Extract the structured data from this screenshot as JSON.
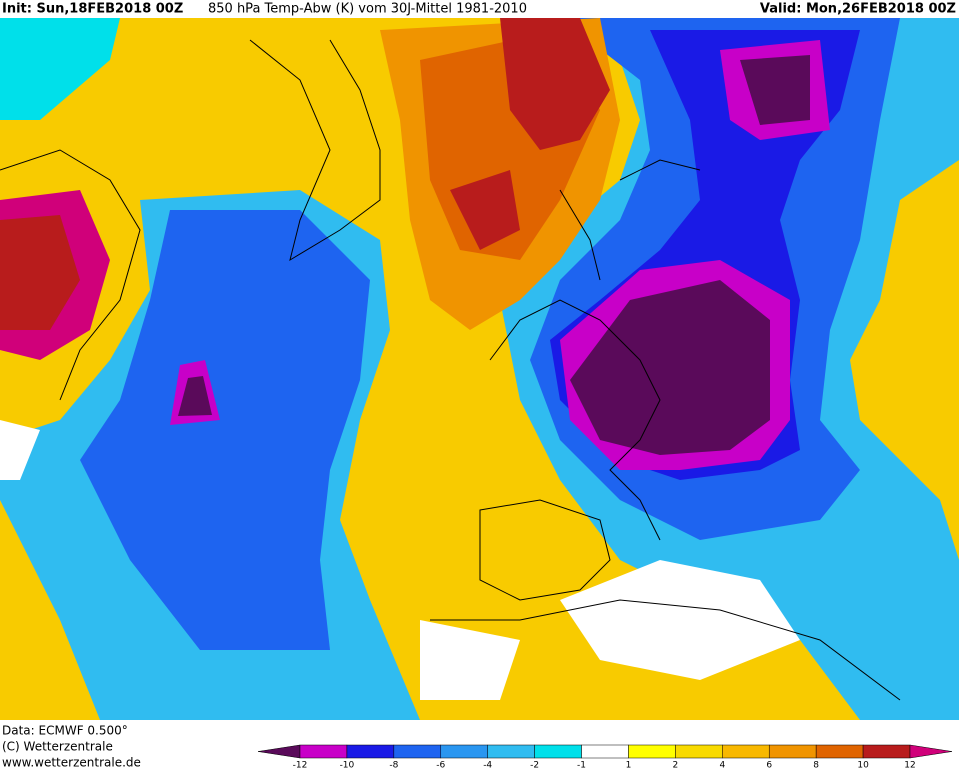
{
  "header": {
    "init": "Init: Sun,18FEB2018 00Z",
    "title": "850 hPa Temp-Abw (K) vom 30J-Mittel 1981-2010",
    "valid": "Valid: Mon,26FEB2018 00Z"
  },
  "footer": {
    "data": "Data: ECMWF  0.500°",
    "copyright": "(C) Wetterzentrale",
    "url": "www.wetterzentrale.de"
  },
  "legend": {
    "ticks": [
      -12,
      -10,
      -8,
      -6,
      -4,
      -2,
      -1,
      1,
      2,
      4,
      6,
      8,
      10,
      12
    ],
    "colors": [
      "#5a0a5a",
      "#c800c8",
      "#1a1ae6",
      "#1e64f0",
      "#2a96f0",
      "#30bcf0",
      "#00e0ea",
      "#ffffff",
      "#ffff00",
      "#f8da00",
      "#f8b800",
      "#f09400",
      "#e06400",
      "#b81c1c",
      "#d0007a"
    ]
  }
}
